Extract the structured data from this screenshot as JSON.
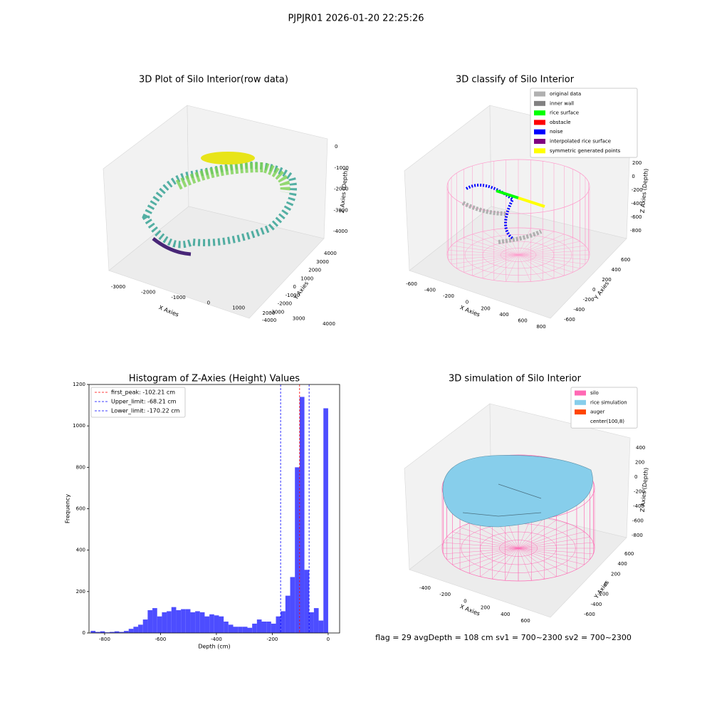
{
  "title": "PJPJR01 2026-01-20 22:25:26",
  "chart_data": [
    {
      "type": "scatter3d",
      "title": "3D Plot of Silo Interior(row data)",
      "xlabel": "X Axies",
      "ylabel": "Y Axies",
      "zlabel": "Z Axies (Depth)",
      "xticks": [
        -3000,
        -2000,
        -1000,
        0,
        1000,
        2000,
        3000,
        4000
      ],
      "yticks": [
        -4000,
        -3000,
        -2000,
        -1000,
        0,
        1000,
        2000,
        3000,
        4000
      ],
      "zticks": [
        0,
        -1000,
        -2000,
        -3000,
        -4000
      ]
    },
    {
      "type": "scatter3d",
      "title": "3D classify of Silo Interior",
      "xlabel": "X Axies",
      "ylabel": "Y Axies",
      "zlabel": "Z Axies (Depth)",
      "xticks": [
        -600,
        -400,
        -200,
        0,
        200,
        400,
        600,
        800
      ],
      "yticks": [
        -600,
        -400,
        -200,
        0,
        200,
        400,
        600
      ],
      "zticks": [
        200,
        0,
        -200,
        -400,
        -600,
        -800
      ],
      "legend": [
        {
          "name": "original data",
          "color": "#b0b0b0"
        },
        {
          "name": "inner wall",
          "color": "#808080"
        },
        {
          "name": "rice surface",
          "color": "#00ff00"
        },
        {
          "name": "obstacle",
          "color": "#ff0000"
        },
        {
          "name": "noise",
          "color": "#0000ff"
        },
        {
          "name": "interpolated rice surface",
          "color": "#800080"
        },
        {
          "name": "symmetric generated points",
          "color": "#ffff00"
        }
      ]
    },
    {
      "type": "histogram",
      "title": "Histogram of Z-Axies (Height) Values",
      "xlabel": "Depth (cm)",
      "ylabel": "Frequency",
      "color": "#4d4dff",
      "bins": [
        -850,
        -833,
        -816,
        -799,
        -782,
        -765,
        -748,
        -731,
        -714,
        -697,
        -680,
        -663,
        -646,
        -629,
        -612,
        -595,
        -578,
        -561,
        -544,
        -527,
        -510,
        -493,
        -476,
        -459,
        -442,
        -425,
        -408,
        -391,
        -374,
        -357,
        -340,
        -323,
        -306,
        -289,
        -272,
        -255,
        -238,
        -221,
        -204,
        -187,
        -170,
        -153,
        -136,
        -119,
        -102,
        -85,
        -68,
        -51,
        -34,
        -17,
        0
      ],
      "values": [
        10,
        5,
        8,
        3,
        5,
        8,
        5,
        10,
        20,
        30,
        40,
        65,
        110,
        120,
        80,
        100,
        105,
        125,
        110,
        115,
        115,
        100,
        105,
        100,
        80,
        90,
        85,
        80,
        55,
        40,
        30,
        30,
        30,
        25,
        45,
        65,
        55,
        55,
        45,
        80,
        105,
        180,
        270,
        800,
        1140,
        305,
        100,
        120,
        60,
        1085
      ],
      "xlim": [
        -856,
        41
      ],
      "ylim": [
        0,
        1200
      ],
      "xticks": [
        -800,
        -600,
        -400,
        -200,
        0
      ],
      "yticks": [
        0,
        200,
        400,
        600,
        800,
        1000,
        1200
      ],
      "lines": [
        {
          "name": "first_peak: -102.21 cm",
          "value": -102.21,
          "color": "#ff0000"
        },
        {
          "name": "Upper_limit: -68.21 cm",
          "value": -68.21,
          "color": "#0000ff"
        },
        {
          "name": "Lower_limit: -170.22 cm",
          "value": -170.22,
          "color": "#0000ff"
        }
      ]
    },
    {
      "type": "surface3d",
      "title": "3D simulation of Silo Interior",
      "xlabel": "X Axies",
      "ylabel": "Y Axies",
      "zlabel": "Z Axies (Depth)",
      "xticks": [
        -400,
        -200,
        0,
        200,
        400,
        600
      ],
      "yticks": [
        -600,
        -400,
        -200,
        0,
        200,
        400,
        600
      ],
      "zticks": [
        400,
        200,
        0,
        -200,
        -400,
        -600,
        -800
      ],
      "legend": [
        {
          "name": "silo",
          "color": "#ff69b4"
        },
        {
          "name": "rice simulation",
          "color": "#87ceeb"
        },
        {
          "name": "auger",
          "color": "#ff4500"
        },
        {
          "name": "center(100,8)",
          "color": "#ffffff"
        }
      ],
      "annotation": "flag = 29  avgDepth = 108 cm  sv1 = 700~2300  sv2 = 700~2300"
    }
  ]
}
